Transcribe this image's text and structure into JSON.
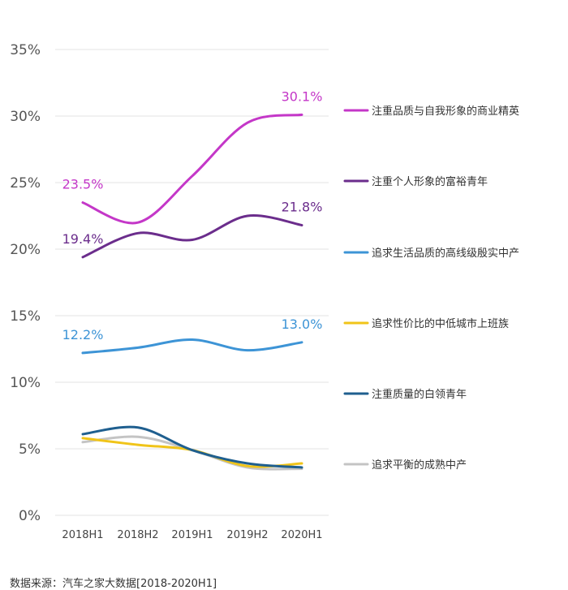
{
  "chart_data": {
    "type": "line",
    "categories": [
      "2018H1",
      "2018H2",
      "2019H1",
      "2019H2",
      "2020H1"
    ],
    "ylim": [
      0,
      35
    ],
    "yticks": [
      "0%",
      "5%",
      "10%",
      "15%",
      "20%",
      "25%",
      "30%",
      "35%"
    ],
    "grid": true,
    "legend_position": "right",
    "series": [
      {
        "name": "注重品质与自我形象的商业精英",
        "color": "#c437c8",
        "values": [
          23.5,
          22.0,
          25.5,
          29.5,
          30.1
        ],
        "labels": [
          "23.5%",
          "",
          "",
          "",
          "30.1%"
        ]
      },
      {
        "name": "注重个人形象的富裕青年",
        "color": "#6b2d8c",
        "values": [
          19.4,
          21.2,
          20.7,
          22.5,
          21.8
        ],
        "labels": [
          "19.4%",
          "",
          "",
          "",
          "21.8%"
        ]
      },
      {
        "name": "追求生活品质的高线级殷实中产",
        "color": "#3d94d6",
        "values": [
          12.2,
          12.6,
          13.2,
          12.4,
          13.0
        ],
        "labels": [
          "12.2%",
          "",
          "",
          "",
          "13.0%"
        ]
      },
      {
        "name": "追求性价比的中低城市上班族",
        "color": "#f0c419",
        "values": [
          5.8,
          5.3,
          4.9,
          3.7,
          3.9
        ],
        "labels": [
          "",
          "",
          "",
          "",
          ""
        ]
      },
      {
        "name": "注重质量的白领青年",
        "color": "#1f5f8f",
        "values": [
          6.1,
          6.6,
          4.9,
          3.9,
          3.6
        ],
        "labels": [
          "",
          "",
          "",
          "",
          ""
        ]
      },
      {
        "name": "追求平衡的成熟中产",
        "color": "#c4c4c4",
        "values": [
          5.5,
          5.9,
          4.9,
          3.6,
          3.5
        ],
        "labels": [
          "",
          "",
          "",
          "",
          ""
        ]
      }
    ]
  },
  "source": "数据来源：汽车之家大数据[2018-2020H1]"
}
